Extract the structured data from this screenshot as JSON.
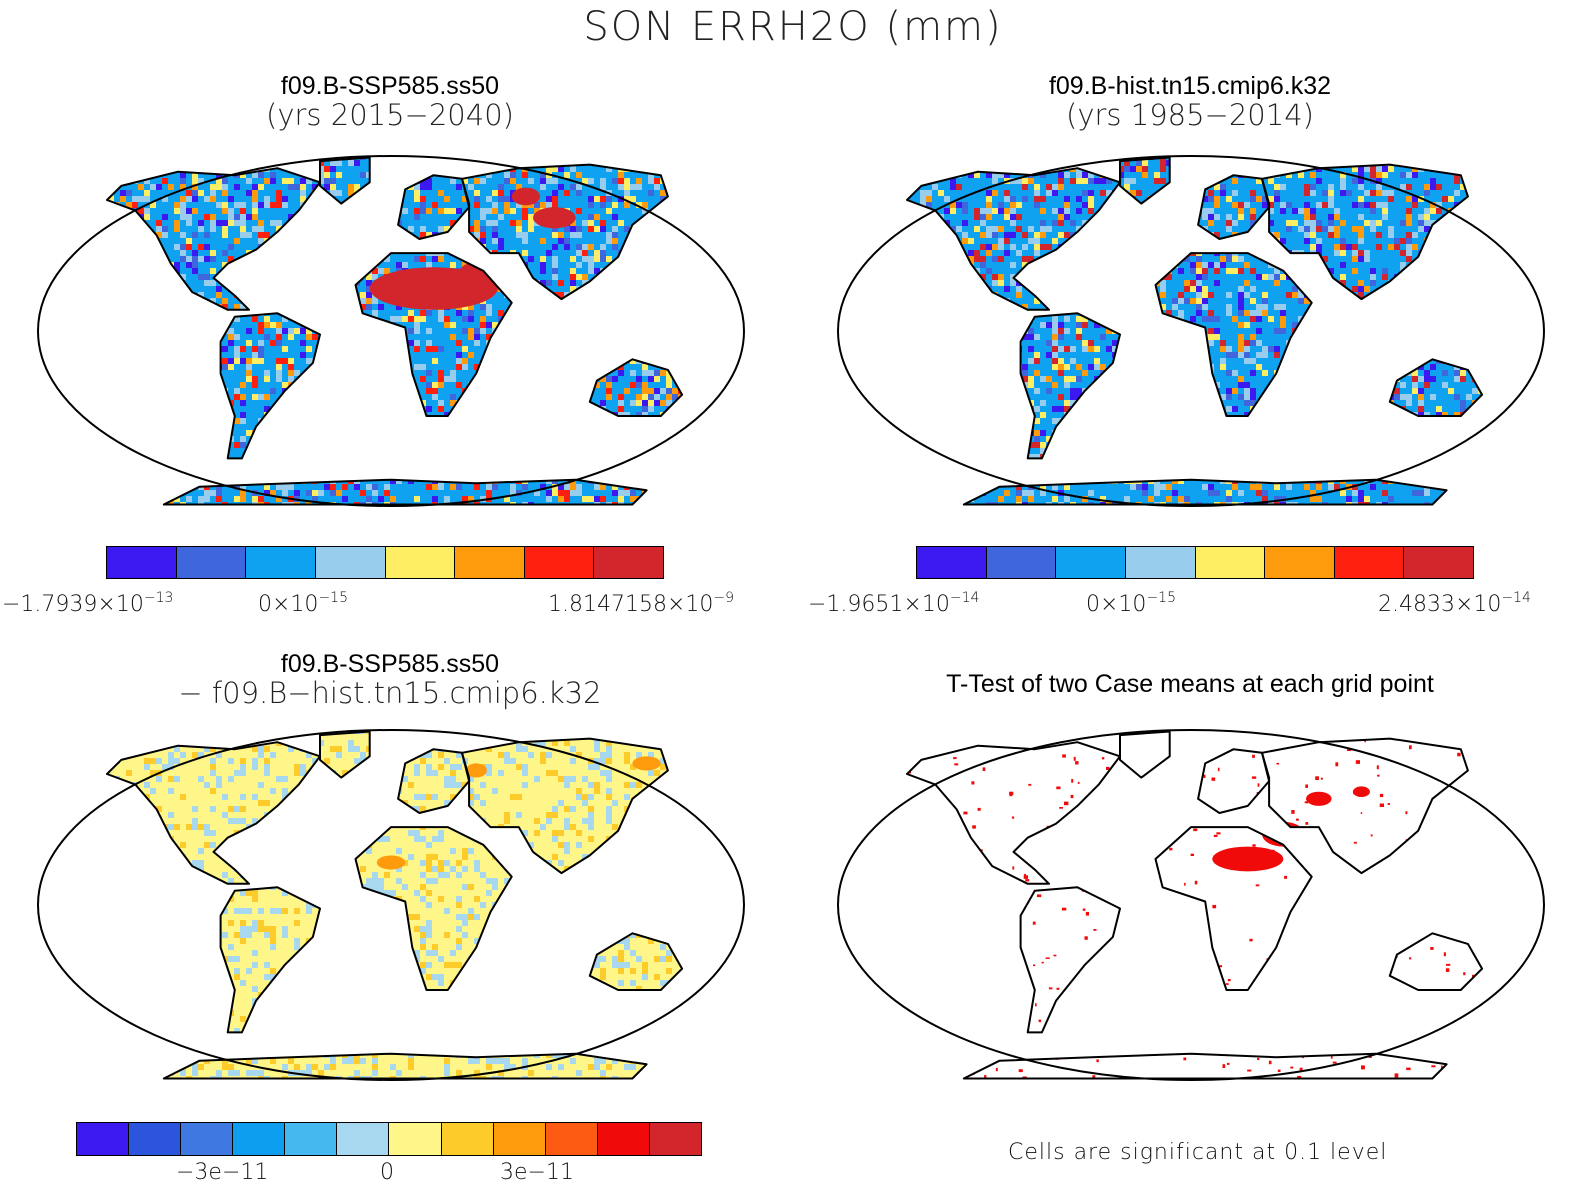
{
  "main_title": "SON ERRH2O (mm)",
  "panels": {
    "tl": {
      "title_line1": "f09.B-SSP585.ss50",
      "title_line2": "(yrs 2015−2040)",
      "colorbar": {
        "colors": [
          "#3c19f0",
          "#3f66dd",
          "#0ea2f0",
          "#98cdee",
          "#fdee63",
          "#fd9b0d",
          "#fd200e",
          "#d3262c"
        ],
        "labels": [
          {
            "base": "−1.7939×10",
            "exp": "−13"
          },
          {
            "base": "0×10",
            "exp": "−15"
          },
          {
            "base": "1.8147158×10",
            "exp": "−9"
          }
        ]
      }
    },
    "tr": {
      "title_line1": "f09.B-hist.tn15.cmip6.k32",
      "title_line2": "(yrs 1985−2014)",
      "colorbar": {
        "colors": [
          "#3c19f0",
          "#3f66dd",
          "#0ea2f0",
          "#98cdee",
          "#fdee63",
          "#fd9b0d",
          "#fd200e",
          "#d3262c"
        ],
        "labels": [
          {
            "base": "−1.9651×10",
            "exp": "−14"
          },
          {
            "base": "0×10",
            "exp": "−15"
          },
          {
            "base": "2.4833×10",
            "exp": "−14"
          }
        ]
      }
    },
    "bl": {
      "title_line1": "f09.B-SSP585.ss50",
      "title_line2": "− f09.B−hist.tn15.cmip6.k32",
      "colorbar": {
        "colors": [
          "#3c19f0",
          "#2b55dc",
          "#3f78e0",
          "#0e9ef0",
          "#45b8f0",
          "#a8d8f0",
          "#fff68a",
          "#fdcc2a",
          "#fd9b0d",
          "#fd5a14",
          "#f00a0a",
          "#d3262c"
        ],
        "labels": [
          "−3e−11",
          "0",
          "3e−11"
        ]
      }
    },
    "br": {
      "title_line1": "T-Test of two Case means at each grid point",
      "note": "Cells are significant at 0.1 level"
    }
  }
}
